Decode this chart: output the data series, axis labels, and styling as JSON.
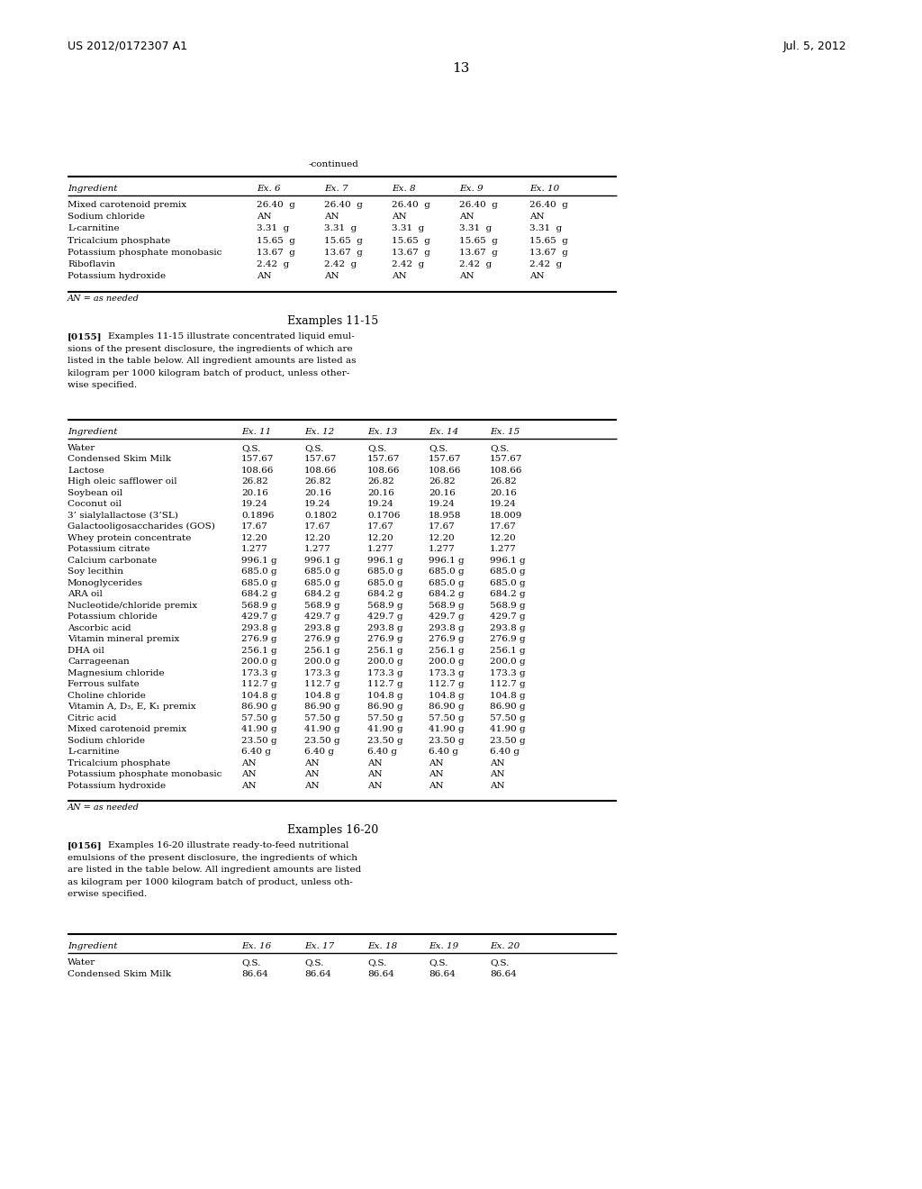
{
  "header_left": "US 2012/0172307 A1",
  "header_right": "Jul. 5, 2012",
  "page_number": "13",
  "continued_label": "-continued",
  "table1_headers": [
    "Ingredient",
    "Ex. 6",
    "Ex. 7",
    "Ex. 8",
    "Ex. 9",
    "Ex. 10"
  ],
  "table1_rows": [
    [
      "Mixed carotenoid premix",
      "26.40  g",
      "26.40  g",
      "26.40  g",
      "26.40  g",
      "26.40  g"
    ],
    [
      "Sodium chloride",
      "AN",
      "AN",
      "AN",
      "AN",
      "AN"
    ],
    [
      "L-carnitine",
      "3.31  g",
      "3.31  g",
      "3.31  g",
      "3.31  g",
      "3.31  g"
    ],
    [
      "Tricalcium phosphate",
      "15.65  g",
      "15.65  g",
      "15.65  g",
      "15.65  g",
      "15.65  g"
    ],
    [
      "Potassium phosphate monobasic",
      "13.67  g",
      "13.67  g",
      "13.67  g",
      "13.67  g",
      "13.67  g"
    ],
    [
      "Riboflavin",
      "2.42  g",
      "2.42  g",
      "2.42  g",
      "2.42  g",
      "2.42  g"
    ],
    [
      "Potassium hydroxide",
      "AN",
      "AN",
      "AN",
      "AN",
      "AN"
    ]
  ],
  "table1_footnote": "AN = as needed",
  "section2_title": "Examples 11-15",
  "section2_para_tag": "[0155]",
  "section2_para": "    Examples 11-15 illustrate concentrated liquid emul-\nsions of the present disclosure, the ingredients of which are\nlisted in the table below. All ingredient amounts are listed as\nkilogram per 1000 kilogram batch of product, unless other-\nwise specified.",
  "table2_headers": [
    "Ingredient",
    "Ex. 11",
    "Ex. 12",
    "Ex. 13",
    "Ex. 14",
    "Ex. 15"
  ],
  "table2_rows": [
    [
      "Water",
      "Q.S.",
      "Q.S.",
      "Q.S.",
      "Q.S.",
      "Q.S."
    ],
    [
      "Condensed Skim Milk",
      "157.67",
      "157.67",
      "157.67",
      "157.67",
      "157.67"
    ],
    [
      "Lactose",
      "108.66",
      "108.66",
      "108.66",
      "108.66",
      "108.66"
    ],
    [
      "High oleic safflower oil",
      "26.82",
      "26.82",
      "26.82",
      "26.82",
      "26.82"
    ],
    [
      "Soybean oil",
      "20.16",
      "20.16",
      "20.16",
      "20.16",
      "20.16"
    ],
    [
      "Coconut oil",
      "19.24",
      "19.24",
      "19.24",
      "19.24",
      "19.24"
    ],
    [
      "3’ sialylallactose (3’SL)",
      "0.1896",
      "0.1802",
      "0.1706",
      "18.958",
      "18.009"
    ],
    [
      "Galactooligosaccharides (GOS)",
      "17.67",
      "17.67",
      "17.67",
      "17.67",
      "17.67"
    ],
    [
      "Whey protein concentrate",
      "12.20",
      "12.20",
      "12.20",
      "12.20",
      "12.20"
    ],
    [
      "Potassium citrate",
      "1.277",
      "1.277",
      "1.277",
      "1.277",
      "1.277"
    ],
    [
      "Calcium carbonate",
      "996.1 g",
      "996.1 g",
      "996.1 g",
      "996.1 g",
      "996.1 g"
    ],
    [
      "Soy lecithin",
      "685.0 g",
      "685.0 g",
      "685.0 g",
      "685.0 g",
      "685.0 g"
    ],
    [
      "Monoglycerides",
      "685.0 g",
      "685.0 g",
      "685.0 g",
      "685.0 g",
      "685.0 g"
    ],
    [
      "ARA oil",
      "684.2 g",
      "684.2 g",
      "684.2 g",
      "684.2 g",
      "684.2 g"
    ],
    [
      "Nucleotide/chloride premix",
      "568.9 g",
      "568.9 g",
      "568.9 g",
      "568.9 g",
      "568.9 g"
    ],
    [
      "Potassium chloride",
      "429.7 g",
      "429.7 g",
      "429.7 g",
      "429.7 g",
      "429.7 g"
    ],
    [
      "Ascorbic acid",
      "293.8 g",
      "293.8 g",
      "293.8 g",
      "293.8 g",
      "293.8 g"
    ],
    [
      "Vitamin mineral premix",
      "276.9 g",
      "276.9 g",
      "276.9 g",
      "276.9 g",
      "276.9 g"
    ],
    [
      "DHA oil",
      "256.1 g",
      "256.1 g",
      "256.1 g",
      "256.1 g",
      "256.1 g"
    ],
    [
      "Carrageenan",
      "200.0 g",
      "200.0 g",
      "200.0 g",
      "200.0 g",
      "200.0 g"
    ],
    [
      "Magnesium chloride",
      "173.3 g",
      "173.3 g",
      "173.3 g",
      "173.3 g",
      "173.3 g"
    ],
    [
      "Ferrous sulfate",
      "112.7 g",
      "112.7 g",
      "112.7 g",
      "112.7 g",
      "112.7 g"
    ],
    [
      "Choline chloride",
      "104.8 g",
      "104.8 g",
      "104.8 g",
      "104.8 g",
      "104.8 g"
    ],
    [
      "Vitamin A, D₃, E, K₁ premix",
      "86.90 g",
      "86.90 g",
      "86.90 g",
      "86.90 g",
      "86.90 g"
    ],
    [
      "Citric acid",
      "57.50 g",
      "57.50 g",
      "57.50 g",
      "57.50 g",
      "57.50 g"
    ],
    [
      "Mixed carotenoid premix",
      "41.90 g",
      "41.90 g",
      "41.90 g",
      "41.90 g",
      "41.90 g"
    ],
    [
      "Sodium chloride",
      "23.50 g",
      "23.50 g",
      "23.50 g",
      "23.50 g",
      "23.50 g"
    ],
    [
      "L-carnitine",
      "6.40 g",
      "6.40 g",
      "6.40 g",
      "6.40 g",
      "6.40 g"
    ],
    [
      "Tricalcium phosphate",
      "AN",
      "AN",
      "AN",
      "AN",
      "AN"
    ],
    [
      "Potassium phosphate monobasic",
      "AN",
      "AN",
      "AN",
      "AN",
      "AN"
    ],
    [
      "Potassium hydroxide",
      "AN",
      "AN",
      "AN",
      "AN",
      "AN"
    ]
  ],
  "table2_footnote": "AN = as needed",
  "section3_title": "Examples 16-20",
  "section3_para_tag": "[0156]",
  "section3_para": "    Examples 16-20 illustrate ready-to-feed nutritional\nemulsions of the present disclosure, the ingredients of which\nare listed in the table below. All ingredient amounts are listed\nas kilogram per 1000 kilogram batch of product, unless oth-\nerwise specified.",
  "table3_headers": [
    "Ingredient",
    "Ex. 16",
    "Ex. 17",
    "Ex. 18",
    "Ex. 19",
    "Ex. 20"
  ],
  "table3_rows": [
    [
      "Water",
      "Q.S.",
      "Q.S.",
      "Q.S.",
      "Q.S.",
      "Q.S."
    ],
    [
      "Condensed Skim Milk",
      "86.64",
      "86.64",
      "86.64",
      "86.64",
      "86.64"
    ]
  ],
  "bg_color": "#ffffff",
  "text_color": "#000000"
}
